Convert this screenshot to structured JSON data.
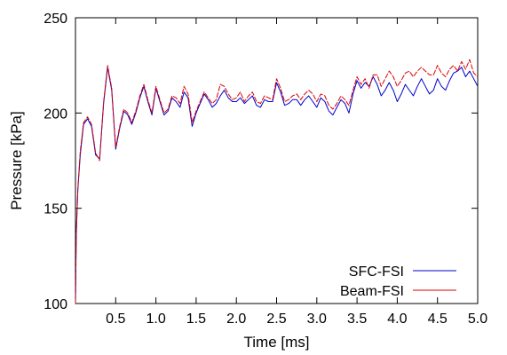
{
  "chart_data": {
    "type": "line",
    "title": "",
    "xlabel": "Time [ms]",
    "ylabel": "Pressure [kPa]",
    "xlim": [
      0.0,
      5.0
    ],
    "ylim": [
      100,
      250
    ],
    "xticks": [
      "0.5",
      "1.0",
      "1.5",
      "2.0",
      "2.5",
      "3.0",
      "3.5",
      "4.0",
      "4.5",
      "5.0"
    ],
    "yticks": [
      "100",
      "150",
      "200",
      "250"
    ],
    "grid": false,
    "legend_position": "bottom-right",
    "series": [
      {
        "name": "SFC-FSI",
        "color": "#0000cc",
        "x": [
          0.0,
          0.01,
          0.03,
          0.06,
          0.1,
          0.15,
          0.2,
          0.25,
          0.3,
          0.35,
          0.4,
          0.45,
          0.5,
          0.55,
          0.6,
          0.65,
          0.7,
          0.75,
          0.8,
          0.85,
          0.9,
          0.95,
          1.0,
          1.05,
          1.1,
          1.15,
          1.2,
          1.25,
          1.3,
          1.35,
          1.4,
          1.45,
          1.5,
          1.55,
          1.6,
          1.65,
          1.7,
          1.75,
          1.8,
          1.85,
          1.9,
          1.95,
          2.0,
          2.05,
          2.1,
          2.15,
          2.2,
          2.25,
          2.3,
          2.35,
          2.4,
          2.45,
          2.5,
          2.55,
          2.6,
          2.65,
          2.7,
          2.75,
          2.8,
          2.85,
          2.9,
          2.95,
          3.0,
          3.05,
          3.1,
          3.15,
          3.2,
          3.25,
          3.3,
          3.35,
          3.4,
          3.45,
          3.5,
          3.55,
          3.6,
          3.65,
          3.7,
          3.75,
          3.8,
          3.85,
          3.9,
          3.95,
          4.0,
          4.05,
          4.1,
          4.15,
          4.2,
          4.25,
          4.3,
          4.35,
          4.4,
          4.45,
          4.5,
          4.55,
          4.6,
          4.65,
          4.7,
          4.75,
          4.8,
          4.85,
          4.9,
          4.95,
          5.0
        ],
        "values": [
          100,
          137,
          160,
          178,
          194,
          197,
          193,
          178,
          176,
          205,
          224,
          212,
          181,
          192,
          201,
          199,
          194,
          200,
          208,
          214,
          206,
          199,
          213,
          206,
          199,
          201,
          208,
          206,
          203,
          211,
          208,
          193,
          200,
          205,
          210,
          207,
          203,
          205,
          209,
          212,
          208,
          206,
          206,
          208,
          205,
          207,
          209,
          204,
          203,
          207,
          206,
          206,
          216,
          211,
          204,
          205,
          207,
          207,
          204,
          207,
          209,
          206,
          203,
          208,
          206,
          201,
          199,
          203,
          207,
          205,
          200,
          210,
          217,
          213,
          216,
          214,
          219,
          215,
          209,
          212,
          216,
          212,
          206,
          210,
          215,
          212,
          209,
          214,
          218,
          214,
          210,
          212,
          218,
          214,
          212,
          217,
          221,
          222,
          224,
          219,
          222,
          218,
          214
        ]
      },
      {
        "name": "Beam-FSI",
        "color": "#dd0000",
        "x": [
          0.0,
          0.01,
          0.03,
          0.06,
          0.1,
          0.15,
          0.2,
          0.25,
          0.3,
          0.35,
          0.4,
          0.45,
          0.5,
          0.55,
          0.6,
          0.65,
          0.7,
          0.75,
          0.8,
          0.85,
          0.9,
          0.95,
          1.0,
          1.05,
          1.1,
          1.15,
          1.2,
          1.25,
          1.3,
          1.35,
          1.4,
          1.45,
          1.5,
          1.55,
          1.6,
          1.65,
          1.7,
          1.75,
          1.8,
          1.85,
          1.9,
          1.95,
          2.0,
          2.05,
          2.1,
          2.15,
          2.2,
          2.25,
          2.3,
          2.35,
          2.4,
          2.45,
          2.5,
          2.55,
          2.6,
          2.65,
          2.7,
          2.75,
          2.8,
          2.85,
          2.9,
          2.95,
          3.0,
          3.05,
          3.1,
          3.15,
          3.2,
          3.25,
          3.3,
          3.35,
          3.4,
          3.45,
          3.5,
          3.55,
          3.6,
          3.65,
          3.7,
          3.75,
          3.8,
          3.85,
          3.9,
          3.95,
          4.0,
          4.05,
          4.1,
          4.15,
          4.2,
          4.25,
          4.3,
          4.35,
          4.4,
          4.45,
          4.5,
          4.55,
          4.6,
          4.65,
          4.7,
          4.75,
          4.8,
          4.85,
          4.9,
          4.95,
          5.0
        ],
        "values": [
          100,
          137,
          160,
          180,
          195,
          198,
          194,
          179,
          175,
          206,
          225,
          213,
          182,
          193,
          202,
          200,
          195,
          201,
          209,
          215,
          207,
          200,
          214,
          207,
          200,
          202,
          209,
          208,
          205,
          214,
          210,
          195,
          201,
          206,
          211,
          208,
          205,
          207,
          215,
          214,
          210,
          207,
          208,
          211,
          206,
          209,
          211,
          206,
          205,
          209,
          208,
          207,
          218,
          213,
          206,
          207,
          209,
          210,
          207,
          210,
          212,
          210,
          206,
          210,
          209,
          204,
          202,
          205,
          209,
          207,
          204,
          212,
          219,
          215,
          218,
          213,
          220,
          220,
          214,
          218,
          222,
          219,
          214,
          217,
          221,
          222,
          219,
          222,
          224,
          222,
          220,
          220,
          225,
          221,
          219,
          223,
          225,
          222,
          227,
          223,
          228,
          221,
          219
        ]
      }
    ]
  }
}
